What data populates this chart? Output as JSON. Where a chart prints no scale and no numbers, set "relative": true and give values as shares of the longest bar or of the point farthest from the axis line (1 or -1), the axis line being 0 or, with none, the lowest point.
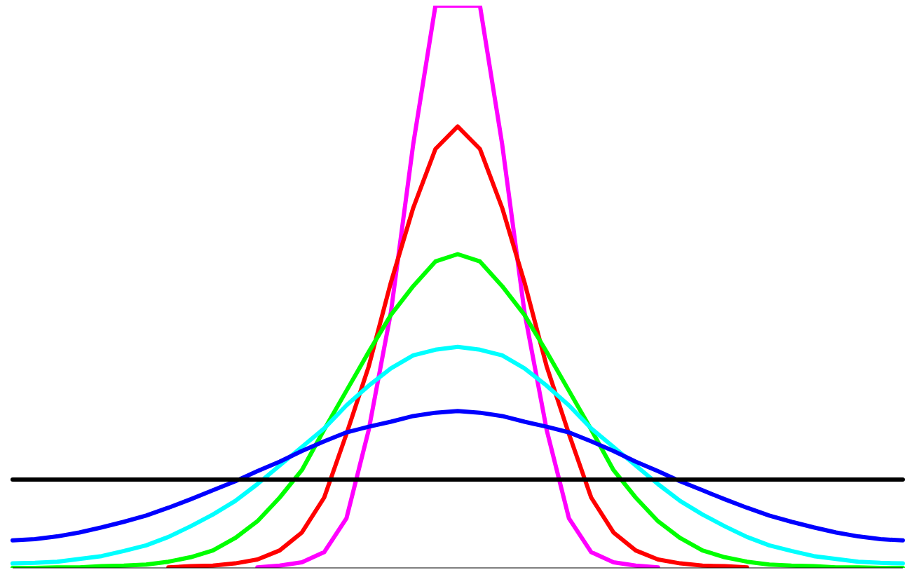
{
  "chart_data": {
    "type": "line",
    "relative": true,
    "marker": "none",
    "line_style": "solid",
    "categories": [
      null,
      null,
      null,
      null,
      null,
      null,
      null,
      null,
      null,
      null,
      null,
      null,
      null,
      null,
      null,
      null,
      null,
      null,
      null,
      null,
      null,
      null,
      null,
      null,
      null,
      null,
      null,
      null,
      null,
      null,
      null,
      null,
      null,
      null,
      null,
      null,
      null,
      null,
      null,
      null,
      null
    ],
    "series": [
      {
        "color": "#ff00ff",
        "values": [
          null,
          null,
          null,
          null,
          null,
          null,
          null,
          null,
          null,
          null,
          null,
          0.001,
          0.004,
          0.01,
          0.028,
          0.088,
          0.245,
          0.455,
          0.753,
          1,
          null,
          1,
          0.753,
          0.455,
          0.245,
          0.088,
          0.028,
          0.01,
          0.004,
          0.001,
          null,
          null,
          null,
          null,
          null,
          null,
          null,
          null,
          null,
          null,
          null
        ]
      },
      {
        "color": "#ff0000",
        "values": [
          null,
          null,
          null,
          null,
          null,
          null,
          null,
          0.001,
          0.003,
          0.004,
          0.008,
          0.015,
          0.031,
          0.063,
          0.125,
          0.238,
          0.358,
          0.508,
          0.64,
          0.745,
          0.785,
          0.745,
          0.64,
          0.508,
          0.358,
          0.238,
          0.125,
          0.063,
          0.031,
          0.015,
          0.008,
          0.004,
          0.003,
          0.001,
          null,
          null,
          null,
          null,
          null,
          null,
          null
        ]
      },
      {
        "color": "#00ff00",
        "values": [
          0,
          0,
          0.001,
          0.001,
          0.003,
          0.004,
          0.006,
          0.011,
          0.019,
          0.031,
          0.053,
          0.083,
          0.125,
          0.174,
          0.246,
          0.315,
          0.384,
          0.45,
          0.501,
          0.545,
          0.558,
          0.545,
          0.501,
          0.45,
          0.384,
          0.315,
          0.246,
          0.174,
          0.125,
          0.083,
          0.053,
          0.031,
          0.019,
          0.011,
          0.006,
          0.004,
          0.003,
          0.001,
          0.001,
          0,
          0
        ]
      },
      {
        "color": "#00ffff",
        "values": [
          0.008,
          0.009,
          0.011,
          0.016,
          0.021,
          0.03,
          0.04,
          0.055,
          0.074,
          0.095,
          0.119,
          0.149,
          0.182,
          0.215,
          0.248,
          0.289,
          0.324,
          0.355,
          0.378,
          0.388,
          0.393,
          0.388,
          0.378,
          0.355,
          0.324,
          0.289,
          0.248,
          0.215,
          0.182,
          0.149,
          0.119,
          0.095,
          0.074,
          0.055,
          0.04,
          0.03,
          0.021,
          0.016,
          0.011,
          0.009,
          0.008
        ]
      },
      {
        "color": "#0000ff",
        "values": [
          0.049,
          0.051,
          0.056,
          0.063,
          0.072,
          0.082,
          0.093,
          0.107,
          0.122,
          0.138,
          0.154,
          0.172,
          0.189,
          0.208,
          0.225,
          0.241,
          0.251,
          0.26,
          0.27,
          0.276,
          0.279,
          0.276,
          0.27,
          0.26,
          0.251,
          0.241,
          0.225,
          0.208,
          0.189,
          0.172,
          0.154,
          0.138,
          0.122,
          0.107,
          0.093,
          0.082,
          0.072,
          0.063,
          0.056,
          0.051,
          0.049
        ]
      },
      {
        "color": "#000000",
        "values": [
          0.157,
          0.157,
          0.157,
          0.157,
          0.157,
          0.157,
          0.157,
          0.157,
          0.157,
          0.157,
          0.157,
          0.157,
          0.157,
          0.157,
          0.157,
          0.157,
          0.157,
          0.157,
          0.157,
          0.157,
          0.157,
          0.157,
          0.157,
          0.157,
          0.157,
          0.157,
          0.157,
          0.157,
          0.157,
          0.157,
          0.157,
          0.157,
          0.157,
          0.157,
          0.157,
          0.157,
          0.157,
          0.157,
          0.157,
          0.157,
          0.157
        ]
      }
    ]
  }
}
